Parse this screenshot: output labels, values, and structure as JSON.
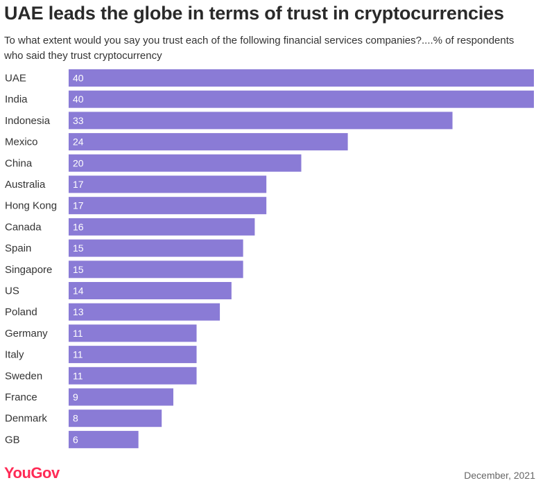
{
  "title": "UAE leads the globe in terms of trust in cryptocurrencies",
  "subtitle": "To what extent would you say you trust each of the following financial services companies?....% of respondents who said they trust cryptocurrency",
  "brand": "YouGov",
  "date": "December, 2021",
  "colors": {
    "bar": "#8a7bd6",
    "brand": "#ff2a55"
  },
  "chart_data": {
    "type": "bar",
    "orientation": "horizontal",
    "categories": [
      "UAE",
      "India",
      "Indonesia",
      "Mexico",
      "China",
      "Australia",
      "Hong Kong",
      "Canada",
      "Spain",
      "Singapore",
      "US",
      "Poland",
      "Germany",
      "Italy",
      "Sweden",
      "France",
      "Denmark",
      "GB"
    ],
    "values": [
      40,
      40,
      33,
      24,
      20,
      17,
      17,
      16,
      15,
      15,
      14,
      13,
      11,
      11,
      11,
      9,
      8,
      6
    ],
    "xlim": [
      0,
      40
    ],
    "grid": false,
    "data_labels": true
  }
}
